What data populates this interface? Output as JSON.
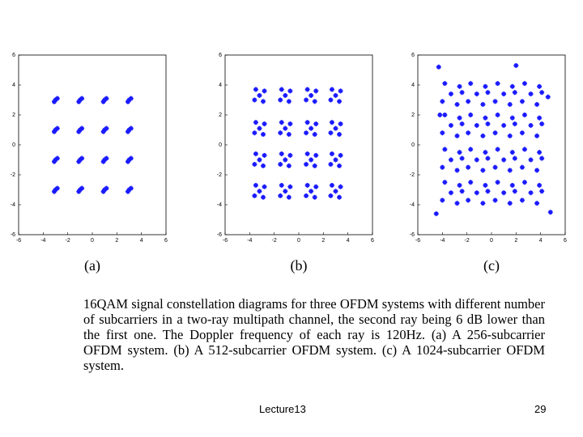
{
  "chart_data": [
    {
      "type": "scatter",
      "title": "(a)",
      "color": "#1a1aff",
      "xlim": [
        -6,
        6
      ],
      "ylim": [
        -6,
        6
      ],
      "xticks": [
        -6,
        -4,
        -2,
        0,
        2,
        4,
        6
      ],
      "yticks": [
        -6,
        -4,
        -2,
        0,
        2,
        4,
        6
      ],
      "x": [
        -3,
        -2.85,
        -3.1,
        -1,
        -0.85,
        -1.1,
        1,
        1.15,
        0.9,
        3,
        3.15,
        2.9,
        -3,
        -2.85,
        -3.1,
        -1,
        -0.85,
        -1.1,
        1,
        1.15,
        0.9,
        3,
        3.15,
        2.9,
        -3,
        -2.85,
        -3.1,
        -1,
        -0.85,
        -1.1,
        1,
        1.15,
        0.9,
        3,
        3.15,
        2.9,
        -3,
        -2.85,
        -3.1,
        -1,
        -0.85,
        -1.1,
        1,
        1.15,
        0.9,
        3,
        3.15,
        2.9
      ],
      "y": [
        3,
        3.1,
        2.88,
        3,
        3.1,
        2.88,
        3,
        3.1,
        2.88,
        3,
        3.1,
        2.88,
        1,
        1.1,
        0.88,
        1,
        1.1,
        0.88,
        1,
        1.1,
        0.88,
        1,
        1.1,
        0.88,
        -1,
        -0.9,
        -1.12,
        -1,
        -0.9,
        -1.12,
        -1,
        -0.9,
        -1.12,
        -1,
        -0.9,
        -1.12,
        -3,
        -2.9,
        -3.12,
        -3,
        -2.9,
        -3.12,
        -3,
        -2.9,
        -3.12,
        -3,
        -2.9,
        -3.12
      ]
    },
    {
      "type": "scatter",
      "title": "(b)",
      "color": "#1a1aff",
      "xlim": [
        -6,
        6
      ],
      "ylim": [
        -6,
        6
      ],
      "xticks": [
        -6,
        -4,
        -2,
        0,
        2,
        4,
        6
      ],
      "yticks": [
        -6,
        -4,
        -2,
        0,
        2,
        4,
        6
      ],
      "x": [
        -3.2,
        -2.8,
        -3.6,
        -2.9,
        -3.5,
        -1.1,
        -0.7,
        -1.5,
        -0.8,
        -1.4,
        1,
        1.4,
        0.6,
        1.3,
        0.7,
        3,
        3.4,
        2.6,
        3.3,
        2.7,
        -3.2,
        -2.8,
        -3.6,
        -2.9,
        -3.5,
        -1.1,
        -0.7,
        -1.5,
        -0.8,
        -1.4,
        1,
        1.4,
        0.6,
        1.3,
        0.7,
        3,
        3.4,
        2.6,
        3.3,
        2.7,
        -3.2,
        -2.8,
        -3.6,
        -2.9,
        -3.5,
        -1.1,
        -0.7,
        -1.5,
        -0.8,
        -1.4,
        1,
        1.4,
        0.6,
        1.3,
        0.7,
        3,
        3.4,
        2.6,
        3.3,
        2.7,
        -3.2,
        -2.8,
        -3.6,
        -2.9,
        -3.5,
        -1.1,
        -0.7,
        -1.5,
        -0.8,
        -1.4,
        1,
        1.4,
        0.6,
        1.3,
        0.7,
        3,
        3.4,
        2.6,
        3.3,
        2.7
      ],
      "y": [
        3.3,
        3.6,
        3,
        2.9,
        3.7,
        3.3,
        3.6,
        3,
        2.9,
        3.7,
        3.3,
        3.6,
        3,
        2.9,
        3.7,
        3.3,
        3.6,
        3,
        2.9,
        3.7,
        1.1,
        1.4,
        0.8,
        0.7,
        1.5,
        1.1,
        1.4,
        0.8,
        0.7,
        1.5,
        1.1,
        1.4,
        0.8,
        0.7,
        1.5,
        1.1,
        1.4,
        0.8,
        0.7,
        1.5,
        -1,
        -0.7,
        -1.3,
        -1.4,
        -0.6,
        -1,
        -0.7,
        -1.3,
        -1.4,
        -0.6,
        -1,
        -0.7,
        -1.3,
        -1.4,
        -0.6,
        -1,
        -0.7,
        -1.3,
        -1.4,
        -0.6,
        -3.1,
        -2.8,
        -3.4,
        -3.5,
        -2.7,
        -3.1,
        -2.8,
        -3.4,
        -3.5,
        -2.7,
        -3.1,
        -2.8,
        -3.4,
        -3.5,
        -2.7,
        -3.1,
        -2.8,
        -3.4,
        -3.5,
        -2.7
      ]
    },
    {
      "type": "scatter",
      "title": "(c)",
      "color": "#1a1aff",
      "xlim": [
        -6,
        6
      ],
      "ylim": [
        -6,
        6
      ],
      "xticks": [
        -6,
        -4,
        -2,
        0,
        2,
        4,
        6
      ],
      "yticks": [
        -6,
        -4,
        -2,
        0,
        2,
        4,
        6
      ],
      "x": [
        -3.3,
        -2.6,
        -4,
        -2.8,
        -3.8,
        -2.4,
        -1.2,
        -0.5,
        -1.9,
        -0.7,
        -1.7,
        -0.3,
        1,
        1.7,
        0.3,
        1.5,
        0.5,
        1.9,
        3.2,
        3.9,
        2.5,
        3.7,
        2.7,
        4.1,
        -3.3,
        -2.6,
        -4,
        -2.8,
        -3.8,
        -2.4,
        -1.2,
        -0.5,
        -1.9,
        -0.7,
        -1.7,
        -0.3,
        1,
        1.7,
        0.3,
        1.5,
        0.5,
        1.9,
        3.2,
        3.9,
        2.5,
        3.7,
        2.7,
        4.1,
        -3.3,
        -2.6,
        -4,
        -2.8,
        -3.8,
        -2.4,
        -1.2,
        -0.5,
        -1.9,
        -0.7,
        -1.7,
        -0.3,
        1,
        1.7,
        0.3,
        1.5,
        0.5,
        1.9,
        3.2,
        3.9,
        2.5,
        3.7,
        2.7,
        4.1,
        -3.3,
        -2.6,
        -4,
        -2.8,
        -3.8,
        -2.4,
        -1.2,
        -0.5,
        -1.9,
        -0.7,
        -1.7,
        -0.3,
        1,
        1.7,
        0.3,
        1.5,
        0.5,
        1.9,
        3.2,
        3.9,
        2.5,
        3.7,
        2.7,
        4.1,
        -4.3,
        4.8,
        -4.5,
        4.6,
        -4.2,
        2
      ],
      "y": [
        3.4,
        3.9,
        2.9,
        2.7,
        4.1,
        3.5,
        3.4,
        3.9,
        2.9,
        2.7,
        4.1,
        3.5,
        3.4,
        3.9,
        2.9,
        2.7,
        4.1,
        3.5,
        3.4,
        3.9,
        2.9,
        2.7,
        4.1,
        3.5,
        1.3,
        1.8,
        0.8,
        0.6,
        2,
        1.4,
        1.3,
        1.8,
        0.8,
        0.6,
        2,
        1.4,
        1.3,
        1.8,
        0.8,
        0.6,
        2,
        1.4,
        1.3,
        1.8,
        0.8,
        0.6,
        2,
        1.4,
        -1,
        -0.5,
        -1.5,
        -1.7,
        -0.3,
        -0.9,
        -1,
        -0.5,
        -1.5,
        -1.7,
        -0.3,
        -0.9,
        -1,
        -0.5,
        -1.5,
        -1.7,
        -0.3,
        -0.9,
        -1,
        -0.5,
        -1.5,
        -1.7,
        -0.3,
        -0.9,
        -3.2,
        -2.7,
        -3.7,
        -3.9,
        -2.5,
        -3.1,
        -3.2,
        -2.7,
        -3.7,
        -3.9,
        -2.5,
        -3.1,
        -3.2,
        -2.7,
        -3.7,
        -3.9,
        -2.5,
        -3.1,
        -3.2,
        -2.7,
        -3.7,
        -3.9,
        -2.5,
        -3.1,
        5.2,
        -4.5,
        -4.6,
        3.2,
        2,
        5.3
      ]
    }
  ],
  "caption": "16QAM signal constellation diagrams for three OFDM systems with different number of subcarriers in a two-ray multipath channel, the second ray being 6 dB lower than the first one. The Doppler frequency of each ray is 120Hz.  (a) A 256-subcarrier OFDM system. (b) A 512-subcarrier OFDM system. (c) A 1024-subcarrier OFDM system.",
  "footer": {
    "left": "Lecture13",
    "page": "29"
  }
}
